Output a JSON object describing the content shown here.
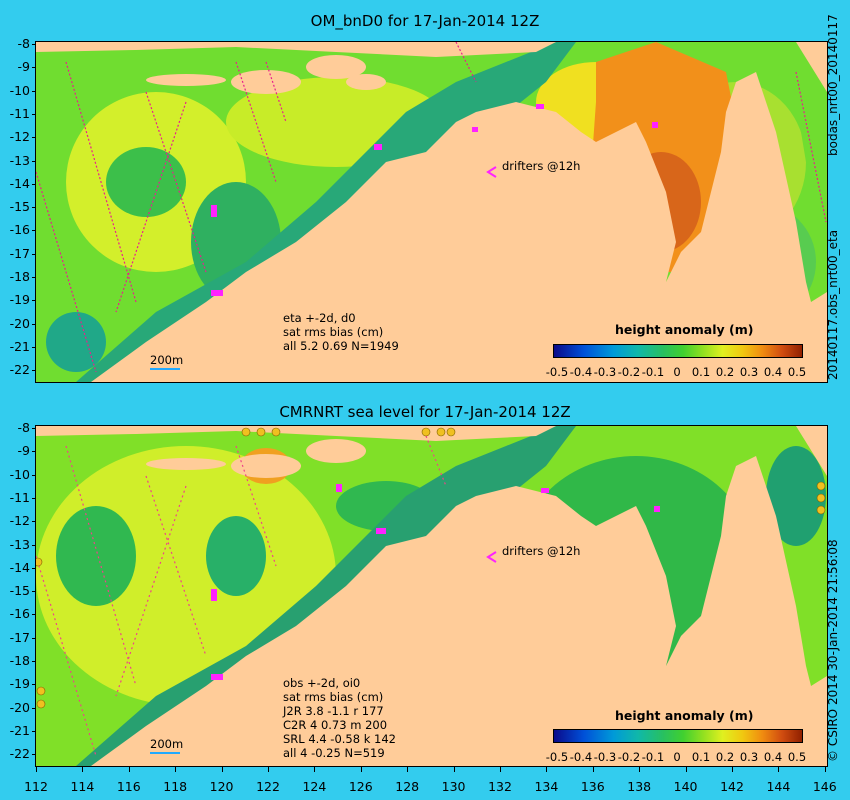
{
  "colors": {
    "background": "#33ccee",
    "land": "#ffcc99",
    "ocean_mid": "#70dd30",
    "warm": "#e08020"
  },
  "panel_top": {
    "title": "OM_bnD0 for 17-Jan-2014 12Z",
    "drifter_label": "drifters @12h",
    "info_lines": [
      "eta +-2d, d0",
      "sat rms bias (cm)",
      "all 5.2 0.69 N=1949"
    ],
    "scale_label": "200m",
    "colorbar_title": "height anomaly (m)",
    "side_text": "20140117.obs_nrt00_eta",
    "side_text_top": "bodas_nrt00_20140117"
  },
  "panel_bottom": {
    "title": "CMRNRT sea level  for 17-Jan-2014 12Z",
    "drifter_label": "drifters @12h",
    "info_lines": [
      "obs +-2d, oi0",
      "sat rms bias (cm)",
      "J2R   3.8 -1.1 r 177",
      "C2R   4 0.73 m 200",
      "SRL   4.4 -0.58 k 142",
      "all   4 -0.25 N=519"
    ],
    "scale_label": "200m",
    "colorbar_title": "height anomaly (m)",
    "side_text": "© CSIRO 2014  30-Jan-2014 21:56:08"
  },
  "lat_labels": [
    "-8",
    "-9",
    "-10",
    "-11",
    "-12",
    "-13",
    "-14",
    "-15",
    "-16",
    "-17",
    "-18",
    "-19",
    "-20",
    "-21",
    "-22"
  ],
  "lon_labels": [
    "112",
    "114",
    "116",
    "118",
    "120",
    "122",
    "124",
    "126",
    "128",
    "130",
    "132",
    "134",
    "136",
    "138",
    "140",
    "142",
    "144",
    "146"
  ],
  "colorbar_labels": [
    "-0.5",
    "-0.4",
    "-0.3",
    "-0.2",
    "-0.1",
    "0",
    "0.1",
    "0.2",
    "0.3",
    "0.4",
    "0.5"
  ]
}
